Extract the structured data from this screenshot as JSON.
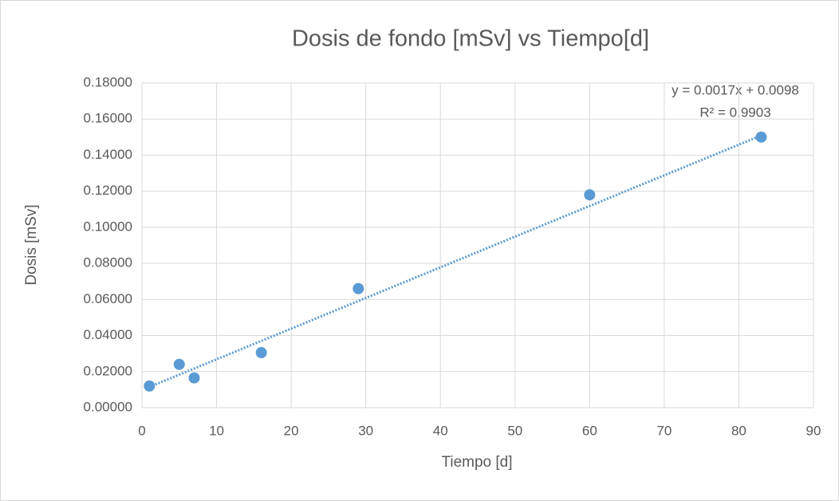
{
  "chart_data": {
    "type": "scatter",
    "title": "Dosis de fondo [mSv] vs Tiempo[d]",
    "x_label": "Tiempo [d]",
    "y_label": "Dosis [mSv]",
    "series": [
      {
        "name": "Dosis",
        "color": "#5b9bd5",
        "x": [
          1,
          5,
          7,
          16,
          29,
          60,
          83
        ],
        "values": [
          0.012,
          0.024,
          0.0165,
          0.0305,
          0.066,
          0.118,
          0.15
        ]
      }
    ],
    "trendline": {
      "label": "y = 0.0017x + 0.0098",
      "slope": 0.0017,
      "intercept": 0.0098,
      "r2_label": "R² = 0.9903",
      "color": "#5b9bd5"
    },
    "xlim": [
      0,
      90
    ],
    "xticks": [
      0,
      10,
      20,
      30,
      40,
      50,
      60,
      70,
      80,
      90
    ],
    "ylim": [
      0,
      0.18
    ],
    "yticks": [
      {
        "value": 0,
        "label": "0.00000"
      },
      {
        "value": 0.02,
        "label": "0.02000"
      },
      {
        "value": 0.04,
        "label": "0.04000"
      },
      {
        "value": 0.06,
        "label": "0.06000"
      },
      {
        "value": 0.08,
        "label": "0.08000"
      },
      {
        "value": 0.1,
        "label": "0.10000"
      },
      {
        "value": 0.12,
        "label": "0.12000"
      },
      {
        "value": 0.14,
        "label": "0.14000"
      },
      {
        "value": 0.16,
        "label": "0.16000"
      },
      {
        "value": 0.18,
        "label": "0.18000"
      }
    ],
    "grid": true
  }
}
